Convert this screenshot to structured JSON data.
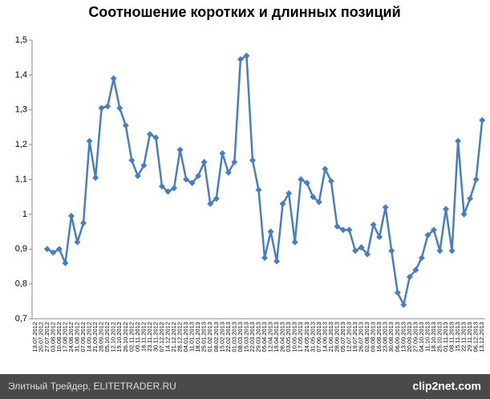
{
  "chart_data": {
    "type": "line",
    "title": "Соотношение коротких и длинных позиций",
    "categories": [
      "13.07.2012",
      "20.07.2012",
      "27.07.2012",
      "03.08.2012",
      "10.08.2012",
      "17.08.2012",
      "24.08.2012",
      "31.08.2012",
      "07.09.2012",
      "14.09.2012",
      "21.09.2012",
      "28.09.2012",
      "05.10.2012",
      "12.10.2012",
      "19.10.2012",
      "26.10.2012",
      "02.11.2012",
      "09.11.2012",
      "16.11.2012",
      "23.11.2012",
      "30.11.2012",
      "07.12.2012",
      "14.12.2012",
      "21.12.2012",
      "28.12.2012",
      "04.01.2013",
      "11.01.2013",
      "18.01.2013",
      "25.01.2013",
      "01.02.2013",
      "08.02.2013",
      "15.02.2013",
      "22.02.2013",
      "01.03.2013",
      "08.03.2013",
      "15.03.2013",
      "22.03.2013",
      "29.03.2013",
      "05.04.2013",
      "12.04.2013",
      "19.04.2013",
      "26.04.2013",
      "03.05.2013",
      "10.05.2013",
      "17.05.2013",
      "24.05.2013",
      "31.05.2013",
      "07.06.2013",
      "14.06.2013",
      "21.06.2013",
      "28.06.2013",
      "05.07.2013",
      "12.07.2013",
      "19.07.2013",
      "26.07.2013",
      "02.08.2013",
      "09.08.2013",
      "16.08.2013",
      "23.08.2013",
      "30.08.2013",
      "06.09.2013",
      "13.09.2013",
      "20.09.2013",
      "27.09.2013",
      "04.10.2013",
      "11.10.2013",
      "18.10.2013",
      "25.10.2013",
      "01.11.2013",
      "08.11.2013",
      "15.11.2013",
      "22.11.2013",
      "29.11.2013",
      "06.12.2013",
      "13.12.2013"
    ],
    "series": [
      {
        "color": "#4a7ebb",
        "values": [
          null,
          null,
          0.9,
          0.89,
          0.9,
          0.86,
          0.995,
          0.92,
          0.975,
          1.21,
          1.105,
          1.305,
          1.31,
          1.39,
          1.305,
          1.255,
          1.155,
          1.11,
          1.14,
          1.23,
          1.22,
          1.08,
          1.065,
          1.075,
          1.185,
          1.1,
          1.09,
          1.11,
          1.15,
          1.03,
          1.045,
          1.175,
          1.12,
          1.15,
          1.445,
          1.455,
          1.155,
          1.07,
          0.875,
          0.95,
          0.865,
          1.03,
          1.06,
          0.92,
          1.1,
          1.09,
          1.05,
          1.035,
          1.13,
          1.095,
          0.965,
          0.955,
          0.955,
          0.895,
          0.905,
          0.885,
          0.97,
          0.935,
          1.02,
          0.895,
          0.775,
          0.74,
          0.82,
          0.84,
          0.875,
          0.94,
          0.955,
          0.895,
          1.015,
          0.895,
          1.21,
          1.0,
          1.045,
          1.1,
          1.27
        ]
      }
    ],
    "ylim": [
      0.7,
      1.5
    ],
    "yticks": [
      {
        "value": 0.7,
        "label": "0,7"
      },
      {
        "value": 0.8,
        "label": "0,8"
      },
      {
        "value": 0.9,
        "label": "0,9"
      },
      {
        "value": 1,
        "label": "1"
      },
      {
        "value": 1.1,
        "label": "1,1"
      },
      {
        "value": 1.2,
        "label": "1,2"
      },
      {
        "value": 1.3,
        "label": "1,3"
      },
      {
        "value": 1.4,
        "label": "1,4"
      },
      {
        "value": 1.5,
        "label": "1,5"
      }
    ],
    "grid": false
  },
  "footer": {
    "source": "Элитный Трейдер, ELITETRADER.RU",
    "watermark": "clip2net.com"
  }
}
